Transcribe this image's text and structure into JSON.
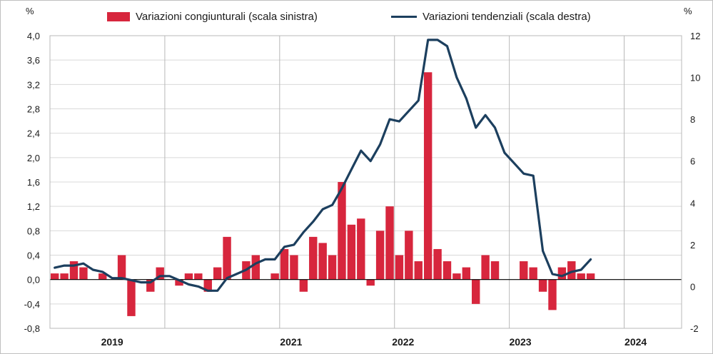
{
  "legend": {
    "bar_label": "Variazioni congiunturali (scala sinistra)",
    "line_label": "Variazioni tendenziali (scala destra)"
  },
  "colors": {
    "bar": "#d7263d",
    "line": "#1c3f5e",
    "grid": "#d9d9d9",
    "axis": "#000000"
  },
  "chart_data": {
    "type": "bar+line",
    "left_unit": "%",
    "right_unit": "%",
    "left_axis": {
      "ylim": [
        -0.8,
        4.0
      ],
      "ticks": [
        "4,0",
        "3,6",
        "3,2",
        "2,8",
        "2,4",
        "2,0",
        "1,6",
        "1,2",
        "0,8",
        "0,4",
        "0,0",
        "-0,4",
        "-0,8"
      ]
    },
    "right_axis": {
      "ylim": [
        -2,
        12
      ],
      "ticks": [
        "12",
        "10",
        "8",
        "6",
        "4",
        "2",
        "0",
        "-2"
      ]
    },
    "x_labels": [
      "2019",
      "2021",
      "2022",
      "2023",
      "2024"
    ],
    "grid": true,
    "legend_position": "top",
    "series": [
      {
        "name": "Variazioni congiunturali (scala sinistra)",
        "type": "bar",
        "axis": "left",
        "values": [
          0.1,
          0.1,
          0.3,
          0.2,
          0,
          0.1,
          0,
          0.4,
          -0.6,
          0,
          -0.2,
          0.2,
          0,
          -0.1,
          0.1,
          0.1,
          -0.2,
          0.2,
          0.7,
          0,
          0.3,
          0.4,
          0,
          0.1,
          0.5,
          0.4,
          -0.2,
          0.7,
          0.6,
          0.4,
          1.6,
          0.9,
          1.0,
          -0.1,
          0.8,
          1.2,
          0.4,
          0.8,
          0.3,
          3.4,
          0.5,
          0.3,
          0.1,
          0.2,
          -0.4,
          0.4,
          0.3,
          0,
          0,
          0.3,
          0.2,
          -0.2,
          -0.5,
          0.2,
          0.3,
          0.1,
          0.1
        ]
      },
      {
        "name": "Variazioni tendenziali (scala destra)",
        "type": "line",
        "axis": "right",
        "values": [
          0.9,
          1.0,
          1.0,
          1.1,
          0.8,
          0.7,
          0.4,
          0.4,
          0.3,
          0.2,
          0.2,
          0.5,
          0.5,
          0.3,
          0.1,
          0,
          -0.2,
          -0.2,
          0.4,
          0.6,
          0.8,
          1.1,
          1.3,
          1.3,
          1.9,
          2.0,
          2.6,
          3.1,
          3.7,
          3.9,
          4.7,
          5.6,
          6.5,
          6.0,
          6.8,
          8.0,
          7.9,
          8.4,
          8.9,
          11.8,
          11.8,
          11.5,
          10.0,
          9.0,
          7.6,
          8.2,
          7.6,
          6.4,
          5.9,
          5.4,
          5.3,
          1.7,
          0.6,
          0.5,
          0.7,
          0.8,
          1.3
        ]
      }
    ]
  }
}
